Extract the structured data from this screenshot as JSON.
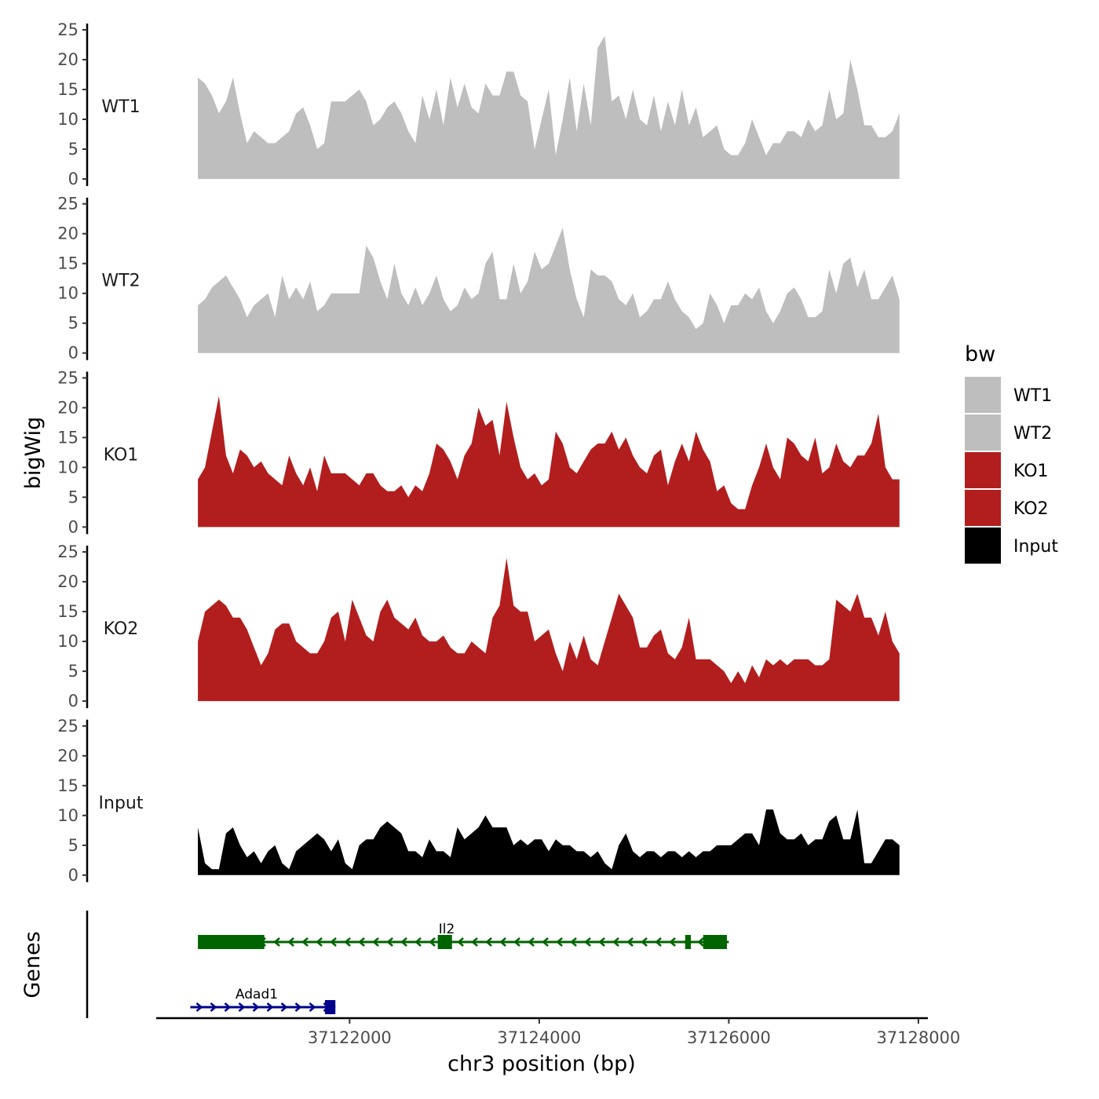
{
  "chart_data": {
    "type": "area",
    "ylabel": "bigWig",
    "xlabel": "chr3 position (bp)",
    "genes_label": "Genes",
    "y_ticks": [
      0,
      5,
      10,
      15,
      20,
      25
    ],
    "ylim": [
      0,
      25
    ],
    "x_ticks": [
      "37122000",
      "37124000",
      "37126000",
      "37128000"
    ],
    "x_tick_values": [
      37122000,
      37124000,
      37126000,
      37128000
    ],
    "xlim": [
      37119960,
      37128100
    ],
    "data_x_range": [
      37120400,
      37127800
    ],
    "legend": {
      "title": "bw",
      "entries": [
        {
          "label": "WT1",
          "color": "#bebebe"
        },
        {
          "label": "WT2",
          "color": "#bebebe"
        },
        {
          "label": "KO1",
          "color": "#b21e1e"
        },
        {
          "label": "KO2",
          "color": "#b21e1e"
        },
        {
          "label": "Input",
          "color": "#000000"
        }
      ]
    },
    "series": [
      {
        "name": "WT1",
        "color": "#bebebe",
        "values": [
          17,
          16,
          14,
          11,
          13,
          17,
          11,
          6,
          8,
          7,
          6,
          6,
          7,
          8,
          11,
          12,
          9,
          5,
          6,
          13,
          13,
          13,
          14,
          15,
          13,
          9,
          10,
          12,
          13,
          11,
          8,
          6,
          14,
          10,
          15,
          9,
          17,
          12,
          16,
          12,
          11,
          16,
          14,
          14,
          18,
          18,
          14,
          13,
          5,
          10,
          15,
          4,
          10,
          17,
          8,
          16,
          9,
          22,
          24,
          13,
          14,
          10,
          15,
          10,
          9,
          14,
          8,
          13,
          9,
          15,
          9,
          12,
          7,
          8,
          9,
          5,
          4,
          4,
          6,
          10,
          7,
          4,
          6,
          6,
          8,
          8,
          7,
          10,
          8,
          9,
          15,
          10,
          11,
          20,
          15,
          9,
          9,
          7,
          7,
          8,
          11
        ]
      },
      {
        "name": "WT2",
        "color": "#bebebe",
        "values": [
          8,
          9,
          11,
          12,
          13,
          11,
          9,
          6,
          8,
          9,
          10,
          6,
          13,
          9,
          11,
          9,
          12,
          7,
          8,
          10,
          10,
          10,
          10,
          10,
          18,
          16,
          12,
          9,
          15,
          10,
          8,
          11,
          8,
          10,
          13,
          9,
          7,
          8,
          11,
          9,
          10,
          15,
          17,
          9,
          9,
          15,
          10,
          12,
          17,
          14,
          15,
          18,
          21,
          14,
          9,
          6,
          14,
          13,
          13,
          12,
          9,
          8,
          10,
          6,
          7,
          9,
          9,
          12,
          9,
          7,
          6,
          4,
          5,
          10,
          8,
          5,
          8,
          8,
          10,
          9,
          11,
          7,
          5,
          7,
          10,
          11,
          9,
          6,
          6,
          7,
          14,
          10,
          15,
          16,
          11,
          14,
          9,
          9,
          11,
          13,
          9
        ]
      },
      {
        "name": "KO1",
        "color": "#b21e1e",
        "values": [
          8,
          10,
          16,
          22,
          12,
          9,
          13,
          12,
          10,
          11,
          9,
          8,
          7,
          12,
          9,
          7,
          10,
          6,
          12,
          9,
          9,
          9,
          8,
          7,
          9,
          9,
          7,
          6,
          6,
          7,
          5,
          7,
          6,
          9,
          14,
          13,
          11,
          8,
          12,
          14,
          20,
          17,
          18,
          12,
          21,
          15,
          10,
          8,
          9,
          7,
          8,
          16,
          14,
          10,
          9,
          11,
          13,
          14,
          14,
          16,
          13,
          15,
          12,
          10,
          9,
          12,
          13,
          7,
          11,
          14,
          11,
          16,
          13,
          11,
          6,
          7,
          4,
          3,
          3,
          7,
          10,
          14,
          10,
          8,
          15,
          14,
          12,
          11,
          15,
          9,
          10,
          14,
          11,
          10,
          12,
          12,
          14,
          19,
          10,
          8,
          8
        ]
      },
      {
        "name": "KO2",
        "color": "#b21e1e",
        "values": [
          10,
          15,
          16,
          17,
          16,
          14,
          14,
          12,
          9,
          6,
          8,
          12,
          13,
          13,
          10,
          9,
          8,
          8,
          10,
          14,
          15,
          10,
          17,
          14,
          11,
          10,
          15,
          17,
          14,
          13,
          12,
          14,
          11,
          10,
          10,
          11,
          9,
          8,
          8,
          10,
          9,
          8,
          14,
          16,
          24,
          16,
          15,
          15,
          10,
          11,
          12,
          8,
          5,
          10,
          7,
          11,
          7,
          6,
          10,
          14,
          18,
          16,
          14,
          9,
          9,
          11,
          12,
          8,
          7,
          9,
          14,
          7,
          7,
          7,
          6,
          5,
          3,
          5,
          3,
          6,
          4,
          7,
          6,
          7,
          6,
          7,
          7,
          7,
          6,
          6,
          7,
          17,
          16,
          15,
          18,
          14,
          14,
          11,
          15,
          10,
          8
        ]
      },
      {
        "name": "Input",
        "color": "#000000",
        "values": [
          8,
          2,
          1,
          1,
          7,
          8,
          5,
          3,
          4,
          2,
          4,
          5,
          2,
          1,
          4,
          5,
          6,
          7,
          6,
          4,
          6,
          2,
          1,
          5,
          6,
          6,
          8,
          9,
          8,
          7,
          4,
          4,
          3,
          6,
          4,
          4,
          3,
          8,
          6,
          7,
          8,
          10,
          8,
          8,
          8,
          5,
          6,
          5,
          6,
          6,
          4,
          6,
          5,
          5,
          4,
          4,
          3,
          4,
          2,
          1,
          5,
          7,
          4,
          3,
          4,
          4,
          3,
          4,
          4,
          3,
          4,
          3,
          4,
          4,
          5,
          5,
          5,
          6,
          7,
          7,
          5,
          11,
          11,
          7,
          6,
          6,
          7,
          5,
          6,
          6,
          9,
          10,
          6,
          6,
          11,
          2,
          2,
          4,
          6,
          6,
          5
        ]
      }
    ],
    "genes": [
      {
        "name": "Il2",
        "color": "#006400",
        "strand": "-",
        "start": 37120400,
        "end": 37126000,
        "exons": [
          [
            37120400,
            37121100
          ],
          [
            37122930,
            37123080
          ],
          [
            37125540,
            37125600
          ],
          [
            37125730,
            37125980
          ]
        ]
      },
      {
        "name": "Adad1",
        "color": "#00008b",
        "strand": "+",
        "start": 37120320,
        "end": 37121850,
        "exons": [
          [
            37121740,
            37121850
          ]
        ]
      }
    ]
  }
}
